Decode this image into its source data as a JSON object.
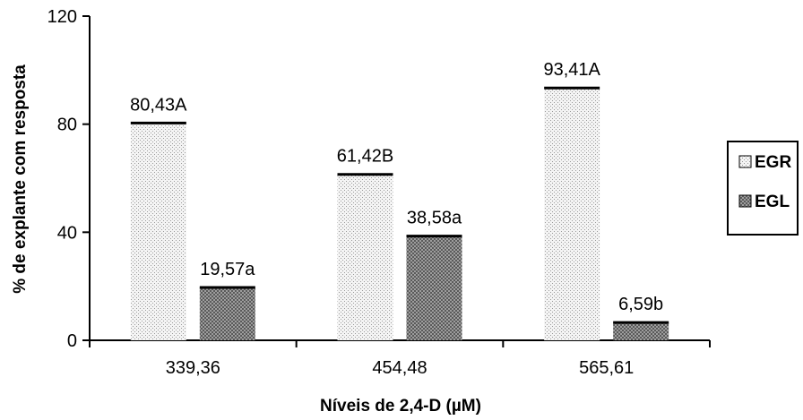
{
  "chart_data": {
    "type": "bar",
    "title": "",
    "xlabel": "Níveis de 2,4-D (µM)",
    "ylabel": "% de explante com resposta",
    "categories": [
      "339,36",
      "454,48",
      "565,61"
    ],
    "ylim": [
      0,
      120
    ],
    "yticks": [
      0,
      40,
      80,
      120
    ],
    "grid": false,
    "legend_position": "right",
    "series": [
      {
        "name": "EGR",
        "values": [
          80.43,
          61.42,
          93.41
        ],
        "labels": [
          "80,43A",
          "61,42B",
          "93,41A"
        ],
        "pattern": "light-dotted"
      },
      {
        "name": "EGL",
        "values": [
          19.57,
          38.58,
          6.59
        ],
        "labels": [
          "19,57a",
          "38,58a",
          "6,59b"
        ],
        "pattern": "dark-checkered"
      }
    ]
  }
}
